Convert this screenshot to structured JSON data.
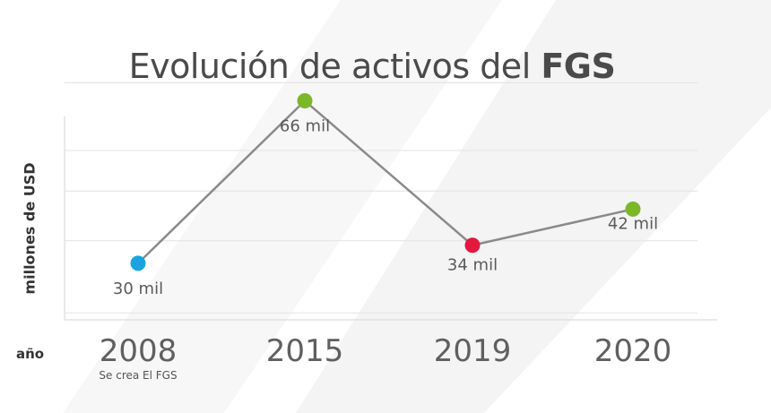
{
  "chart_data": {
    "type": "line",
    "title": "Evolución de activos del",
    "title_emphasis": "FGS",
    "ylabel": "millones de USD",
    "xlabel": "año",
    "categories": [
      "2008",
      "2015",
      "2019",
      "2020"
    ],
    "values": [
      30,
      66,
      34,
      42
    ],
    "data_labels": [
      "30 mil",
      "66 mil",
      "34 mil",
      "42 mil"
    ],
    "point_colors": [
      "#1aa3e0",
      "#7ab828",
      "#e4173f",
      "#7ab828"
    ],
    "annotations": [
      {
        "category": "2008",
        "text": "Se crea El FGS"
      }
    ],
    "line_color": "#8a8a8a",
    "grid": true,
    "ylim": [
      0,
      80
    ]
  }
}
